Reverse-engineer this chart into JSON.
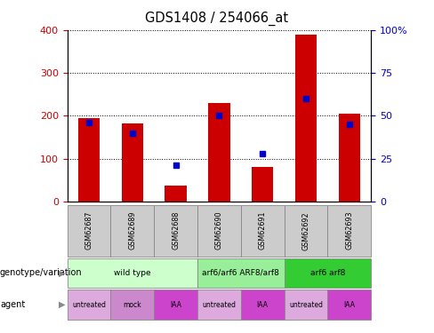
{
  "title": "GDS1408 / 254066_at",
  "samples": [
    "GSM62687",
    "GSM62689",
    "GSM62688",
    "GSM62690",
    "GSM62691",
    "GSM62692",
    "GSM62693"
  ],
  "count_values": [
    195,
    182,
    38,
    230,
    80,
    390,
    205
  ],
  "percentile_values": [
    46,
    40,
    21,
    50,
    28,
    60,
    45
  ],
  "ylim_left": [
    0,
    400
  ],
  "ylim_right": [
    0,
    100
  ],
  "yticks_left": [
    0,
    100,
    200,
    300,
    400
  ],
  "yticks_right": [
    0,
    25,
    50,
    75,
    100
  ],
  "ytick_labels_right": [
    "0",
    "25",
    "50",
    "75",
    "100%"
  ],
  "bar_color": "#cc0000",
  "dot_color": "#0000cc",
  "genotype_groups": [
    {
      "label": "wild type",
      "start": 0,
      "end": 3,
      "color": "#ccffcc",
      "border": "#888888"
    },
    {
      "label": "arf6/arf6 ARF8/arf8",
      "start": 3,
      "end": 5,
      "color": "#99ee99",
      "border": "#888888"
    },
    {
      "label": "arf6 arf8",
      "start": 5,
      "end": 7,
      "color": "#33cc33",
      "border": "#888888"
    }
  ],
  "agent_labels": [
    "untreated",
    "mock",
    "IAA",
    "untreated",
    "IAA",
    "untreated",
    "IAA"
  ],
  "agent_colors": [
    "#ddaadd",
    "#cc88cc",
    "#cc44cc",
    "#ddaadd",
    "#cc44cc",
    "#ddaadd",
    "#cc44cc"
  ],
  "agent_border": "#888888",
  "tick_label_color_left": "#cc0000",
  "tick_label_color_right": "#0000cc",
  "sample_box_color": "#cccccc",
  "legend_count_color": "#cc0000",
  "legend_dot_color": "#0000cc"
}
